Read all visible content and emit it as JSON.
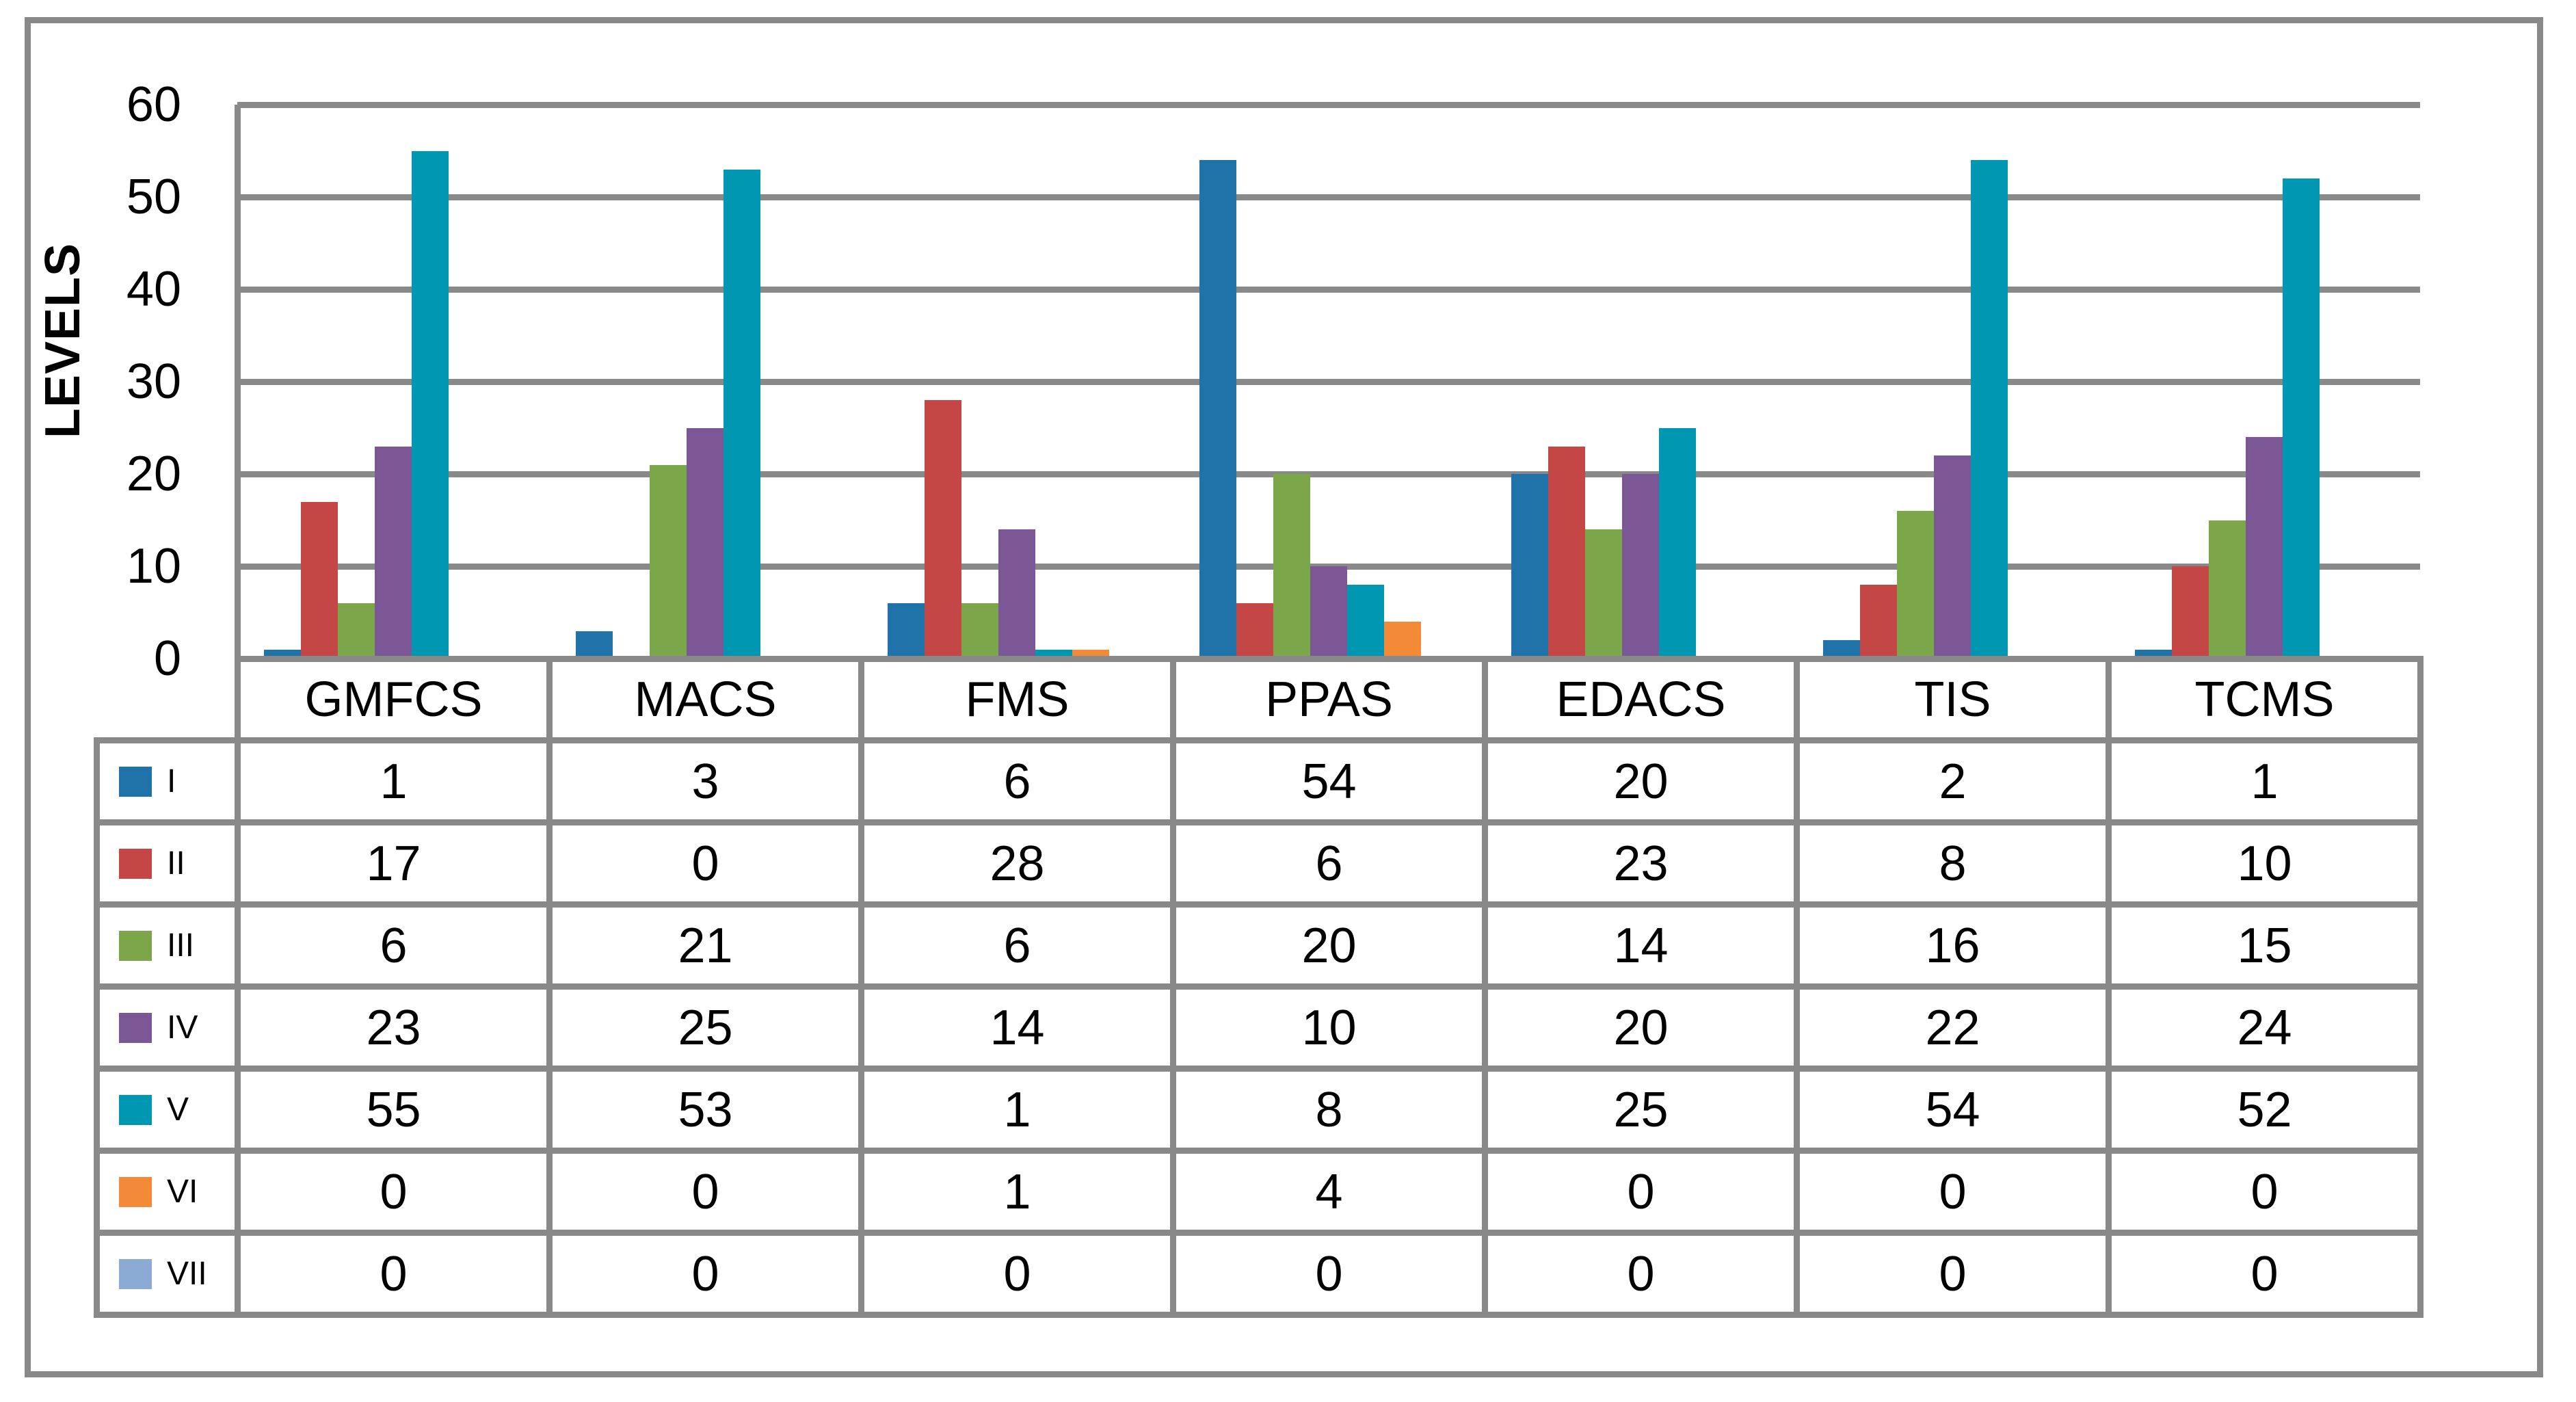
{
  "chart_data": {
    "type": "bar",
    "title": "",
    "xlabel": "",
    "ylabel": "LEVELS",
    "ylim": [
      0,
      60
    ],
    "yticks": [
      0,
      10,
      20,
      30,
      40,
      50,
      60
    ],
    "grid": true,
    "legend_position": "table-left",
    "categories": [
      "GMFCS",
      "MACS",
      "FMS",
      "PPAS",
      "EDACS",
      "TIS",
      "TCMS"
    ],
    "series": [
      {
        "name": "I",
        "color": "#1F73A8",
        "values": [
          1,
          3,
          6,
          54,
          20,
          2,
          1
        ]
      },
      {
        "name": "II",
        "color": "#C44745",
        "values": [
          17,
          0,
          28,
          6,
          23,
          8,
          10
        ]
      },
      {
        "name": "III",
        "color": "#7CA64A",
        "values": [
          6,
          21,
          6,
          20,
          14,
          16,
          15
        ]
      },
      {
        "name": "IV",
        "color": "#7B5796",
        "values": [
          23,
          25,
          14,
          10,
          20,
          22,
          24
        ]
      },
      {
        "name": "V",
        "color": "#0097B2",
        "values": [
          55,
          53,
          1,
          8,
          25,
          54,
          52
        ]
      },
      {
        "name": "VI",
        "color": "#F28A38",
        "values": [
          0,
          0,
          1,
          4,
          0,
          0,
          0
        ]
      },
      {
        "name": "VII",
        "color": "#8BABD5",
        "values": [
          0,
          0,
          0,
          0,
          0,
          0,
          0
        ]
      }
    ]
  },
  "colors": {
    "border": "#898989",
    "text": "#000000",
    "background": "#FFFFFF"
  }
}
